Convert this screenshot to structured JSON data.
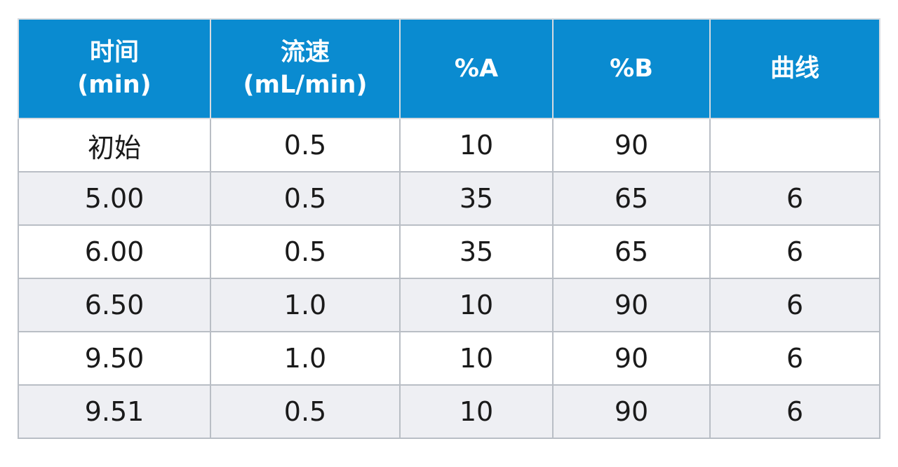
{
  "table": {
    "headers": [
      {
        "line1": "时间",
        "line2": "(min)"
      },
      {
        "line1": "流速",
        "line2": "(mL/min)"
      },
      {
        "line1": "%A",
        "line2": ""
      },
      {
        "line1": "%B",
        "line2": ""
      },
      {
        "line1": "曲线",
        "line2": ""
      }
    ],
    "rows": [
      [
        "初始",
        "0.5",
        "10",
        "90",
        ""
      ],
      [
        "5.00",
        "0.5",
        "35",
        "65",
        "6"
      ],
      [
        "6.00",
        "0.5",
        "35",
        "65",
        "6"
      ],
      [
        "6.50",
        "1.0",
        "10",
        "90",
        "6"
      ],
      [
        "9.50",
        "1.0",
        "10",
        "90",
        "6"
      ],
      [
        "9.51",
        "0.5",
        "10",
        "90",
        "6"
      ]
    ]
  },
  "colors": {
    "header_bg": "#0a8bd0",
    "header_text": "#ffffff",
    "row_alt_bg": "#eeeff3",
    "border": "#b9bec5"
  }
}
